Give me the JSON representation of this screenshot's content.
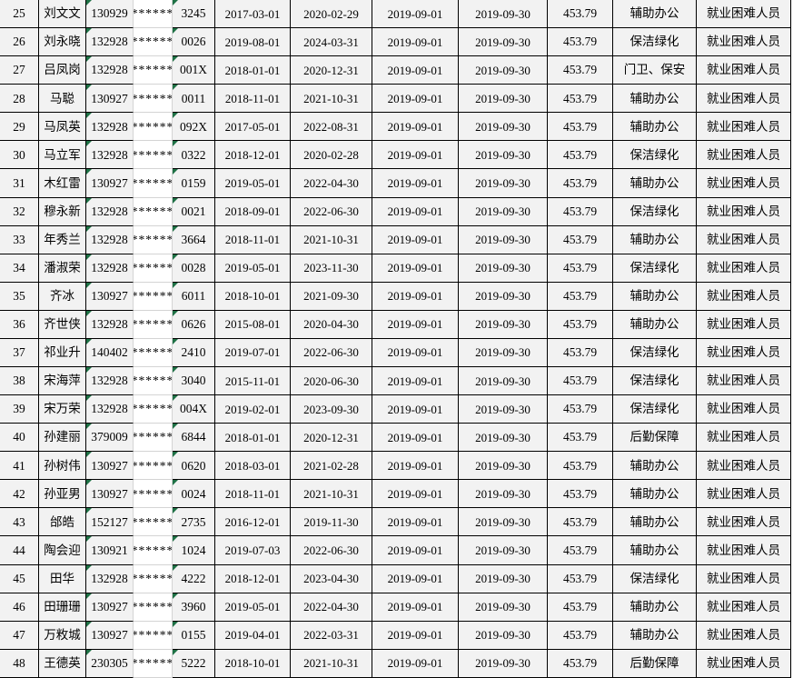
{
  "table": {
    "masked_value": "******",
    "colors": {
      "cell_background": "#f2f2f2",
      "masked_cell_background": "#ffffff",
      "grid_border": "#000000",
      "light_border": "#d4d4d4",
      "error_indicator_green": "#1e7145"
    },
    "rows": [
      {
        "no": "25",
        "name": "刘文文",
        "id_prefix": "130929",
        "id_masked": "******",
        "id_suffix": "3245",
        "start_date": "2017-03-01",
        "end_date": "2020-02-29",
        "pay_start": "2019-09-01",
        "pay_end": "2019-09-30",
        "amount": "453.79",
        "post": "辅助办公",
        "category": "就业困难人员"
      },
      {
        "no": "26",
        "name": "刘永晓",
        "id_prefix": "132928",
        "id_masked": "******",
        "id_suffix": "0026",
        "start_date": "2019-08-01",
        "end_date": "2024-03-31",
        "pay_start": "2019-09-01",
        "pay_end": "2019-09-30",
        "amount": "453.79",
        "post": "保洁绿化",
        "category": "就业困难人员"
      },
      {
        "no": "27",
        "name": "吕凤岗",
        "id_prefix": "132928",
        "id_masked": "******",
        "id_suffix": "001X",
        "start_date": "2018-01-01",
        "end_date": "2020-12-31",
        "pay_start": "2019-09-01",
        "pay_end": "2019-09-30",
        "amount": "453.79",
        "post": "门卫、保安",
        "category": "就业困难人员"
      },
      {
        "no": "28",
        "name": "马聪",
        "id_prefix": "130927",
        "id_masked": "******",
        "id_suffix": "0011",
        "start_date": "2018-11-01",
        "end_date": "2021-10-31",
        "pay_start": "2019-09-01",
        "pay_end": "2019-09-30",
        "amount": "453.79",
        "post": "辅助办公",
        "category": "就业困难人员"
      },
      {
        "no": "29",
        "name": "马凤英",
        "id_prefix": "132928",
        "id_masked": "******",
        "id_suffix": "092X",
        "start_date": "2017-05-01",
        "end_date": "2022-08-31",
        "pay_start": "2019-09-01",
        "pay_end": "2019-09-30",
        "amount": "453.79",
        "post": "辅助办公",
        "category": "就业困难人员"
      },
      {
        "no": "30",
        "name": "马立军",
        "id_prefix": "132928",
        "id_masked": "******",
        "id_suffix": "0322",
        "start_date": "2018-12-01",
        "end_date": "2020-02-28",
        "pay_start": "2019-09-01",
        "pay_end": "2019-09-30",
        "amount": "453.79",
        "post": "保洁绿化",
        "category": "就业困难人员"
      },
      {
        "no": "31",
        "name": "木红雷",
        "id_prefix": "130927",
        "id_masked": "******",
        "id_suffix": "0159",
        "start_date": "2019-05-01",
        "end_date": "2022-04-30",
        "pay_start": "2019-09-01",
        "pay_end": "2019-09-30",
        "amount": "453.79",
        "post": "辅助办公",
        "category": "就业困难人员"
      },
      {
        "no": "32",
        "name": "穆永新",
        "id_prefix": "132928",
        "id_masked": "******",
        "id_suffix": "0021",
        "start_date": "2018-09-01",
        "end_date": "2022-06-30",
        "pay_start": "2019-09-01",
        "pay_end": "2019-09-30",
        "amount": "453.79",
        "post": "保洁绿化",
        "category": "就业困难人员"
      },
      {
        "no": "33",
        "name": "年秀兰",
        "id_prefix": "132928",
        "id_masked": "******",
        "id_suffix": "3664",
        "start_date": "2018-11-01",
        "end_date": "2021-10-31",
        "pay_start": "2019-09-01",
        "pay_end": "2019-09-30",
        "amount": "453.79",
        "post": "辅助办公",
        "category": "就业困难人员"
      },
      {
        "no": "34",
        "name": "潘淑荣",
        "id_prefix": "132928",
        "id_masked": "******",
        "id_suffix": "0028",
        "start_date": "2019-05-01",
        "end_date": "2023-11-30",
        "pay_start": "2019-09-01",
        "pay_end": "2019-09-30",
        "amount": "453.79",
        "post": "保洁绿化",
        "category": "就业困难人员"
      },
      {
        "no": "35",
        "name": "齐冰",
        "id_prefix": "130927",
        "id_masked": "******",
        "id_suffix": "6011",
        "start_date": "2018-10-01",
        "end_date": "2021-09-30",
        "pay_start": "2019-09-01",
        "pay_end": "2019-09-30",
        "amount": "453.79",
        "post": "辅助办公",
        "category": "就业困难人员"
      },
      {
        "no": "36",
        "name": "齐世侠",
        "id_prefix": "132928",
        "id_masked": "******",
        "id_suffix": "0626",
        "start_date": "2015-08-01",
        "end_date": "2020-04-30",
        "pay_start": "2019-09-01",
        "pay_end": "2019-09-30",
        "amount": "453.79",
        "post": "辅助办公",
        "category": "就业困难人员"
      },
      {
        "no": "37",
        "name": "祁业升",
        "id_prefix": "140402",
        "id_masked": "******",
        "id_suffix": "2410",
        "start_date": "2019-07-01",
        "end_date": "2022-06-30",
        "pay_start": "2019-09-01",
        "pay_end": "2019-09-30",
        "amount": "453.79",
        "post": "保洁绿化",
        "category": "就业困难人员"
      },
      {
        "no": "38",
        "name": "宋海萍",
        "id_prefix": "132928",
        "id_masked": "******",
        "id_suffix": "3040",
        "start_date": "2015-11-01",
        "end_date": "2020-06-30",
        "pay_start": "2019-09-01",
        "pay_end": "2019-09-30",
        "amount": "453.79",
        "post": "保洁绿化",
        "category": "就业困难人员"
      },
      {
        "no": "39",
        "name": "宋万荣",
        "id_prefix": "132928",
        "id_masked": "******",
        "id_suffix": "004X",
        "start_date": "2019-02-01",
        "end_date": "2023-09-30",
        "pay_start": "2019-09-01",
        "pay_end": "2019-09-30",
        "amount": "453.79",
        "post": "保洁绿化",
        "category": "就业困难人员"
      },
      {
        "no": "40",
        "name": "孙建丽",
        "id_prefix": "379009",
        "id_masked": "******",
        "id_suffix": "6844",
        "start_date": "2018-01-01",
        "end_date": "2020-12-31",
        "pay_start": "2019-09-01",
        "pay_end": "2019-09-30",
        "amount": "453.79",
        "post": "后勤保障",
        "category": "就业困难人员"
      },
      {
        "no": "41",
        "name": "孙树伟",
        "id_prefix": "130927",
        "id_masked": "******",
        "id_suffix": "0620",
        "start_date": "2018-03-01",
        "end_date": "2021-02-28",
        "pay_start": "2019-09-01",
        "pay_end": "2019-09-30",
        "amount": "453.79",
        "post": "辅助办公",
        "category": "就业困难人员"
      },
      {
        "no": "42",
        "name": "孙亚男",
        "id_prefix": "130927",
        "id_masked": "******",
        "id_suffix": "0024",
        "start_date": "2018-11-01",
        "end_date": "2021-10-31",
        "pay_start": "2019-09-01",
        "pay_end": "2019-09-30",
        "amount": "453.79",
        "post": "辅助办公",
        "category": "就业困难人员"
      },
      {
        "no": "43",
        "name": "邰皓",
        "id_prefix": "152127",
        "id_masked": "******",
        "id_suffix": "2735",
        "start_date": "2016-12-01",
        "end_date": "2019-11-30",
        "pay_start": "2019-09-01",
        "pay_end": "2019-09-30",
        "amount": "453.79",
        "post": "辅助办公",
        "category": "就业困难人员"
      },
      {
        "no": "44",
        "name": "陶会迎",
        "id_prefix": "130921",
        "id_masked": "******",
        "id_suffix": "1024",
        "start_date": "2019-07-03",
        "end_date": "2022-06-30",
        "pay_start": "2019-09-01",
        "pay_end": "2019-09-30",
        "amount": "453.79",
        "post": "辅助办公",
        "category": "就业困难人员"
      },
      {
        "no": "45",
        "name": "田华",
        "id_prefix": "132928",
        "id_masked": "******",
        "id_suffix": "4222",
        "start_date": "2018-12-01",
        "end_date": "2023-04-30",
        "pay_start": "2019-09-01",
        "pay_end": "2019-09-30",
        "amount": "453.79",
        "post": "保洁绿化",
        "category": "就业困难人员"
      },
      {
        "no": "46",
        "name": "田珊珊",
        "id_prefix": "130927",
        "id_masked": "******",
        "id_suffix": "3960",
        "start_date": "2019-05-01",
        "end_date": "2022-04-30",
        "pay_start": "2019-09-01",
        "pay_end": "2019-09-30",
        "amount": "453.79",
        "post": "辅助办公",
        "category": "就业困难人员"
      },
      {
        "no": "47",
        "name": "万敉城",
        "id_prefix": "130927",
        "id_masked": "******",
        "id_suffix": "0155",
        "start_date": "2019-04-01",
        "end_date": "2022-03-31",
        "pay_start": "2019-09-01",
        "pay_end": "2019-09-30",
        "amount": "453.79",
        "post": "辅助办公",
        "category": "就业困难人员"
      },
      {
        "no": "48",
        "name": "王德英",
        "id_prefix": "230305",
        "id_masked": "******",
        "id_suffix": "5222",
        "start_date": "2018-10-01",
        "end_date": "2021-10-31",
        "pay_start": "2019-09-01",
        "pay_end": "2019-09-30",
        "amount": "453.79",
        "post": "后勤保障",
        "category": "就业困难人员"
      }
    ]
  }
}
